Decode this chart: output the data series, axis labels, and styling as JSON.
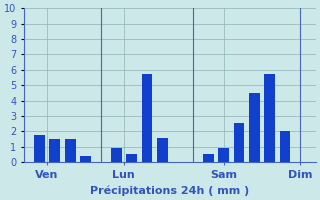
{
  "xlabel": "Précipitations 24h ( mm )",
  "background_color": "#cce8e8",
  "bar_color": "#1040cc",
  "grid_color": "#99bbbb",
  "axis_color": "#4466bb",
  "text_color": "#3355bb",
  "ylim": [
    0,
    10
  ],
  "yticks": [
    0,
    1,
    2,
    3,
    4,
    5,
    6,
    7,
    8,
    9,
    10
  ],
  "bar_x": [
    1,
    2,
    3,
    4,
    6,
    7,
    8,
    9,
    10,
    12,
    13,
    14,
    15,
    16,
    17
  ],
  "bar_h": [
    1.75,
    1.5,
    1.5,
    0.4,
    0.9,
    0.55,
    5.7,
    1.55,
    0.0,
    0.55,
    0.9,
    2.55,
    4.5,
    5.7,
    2.0
  ],
  "xlim": [
    0,
    19
  ],
  "day_ticks": [
    1.5,
    6.5,
    13.0,
    18.0
  ],
  "day_labels": [
    "Ven",
    "Lun",
    "Sam",
    "Dim"
  ],
  "vlines": [
    0,
    5,
    11,
    18
  ],
  "xlabel_fontsize": 8,
  "ytick_fontsize": 7,
  "xtick_fontsize": 8
}
